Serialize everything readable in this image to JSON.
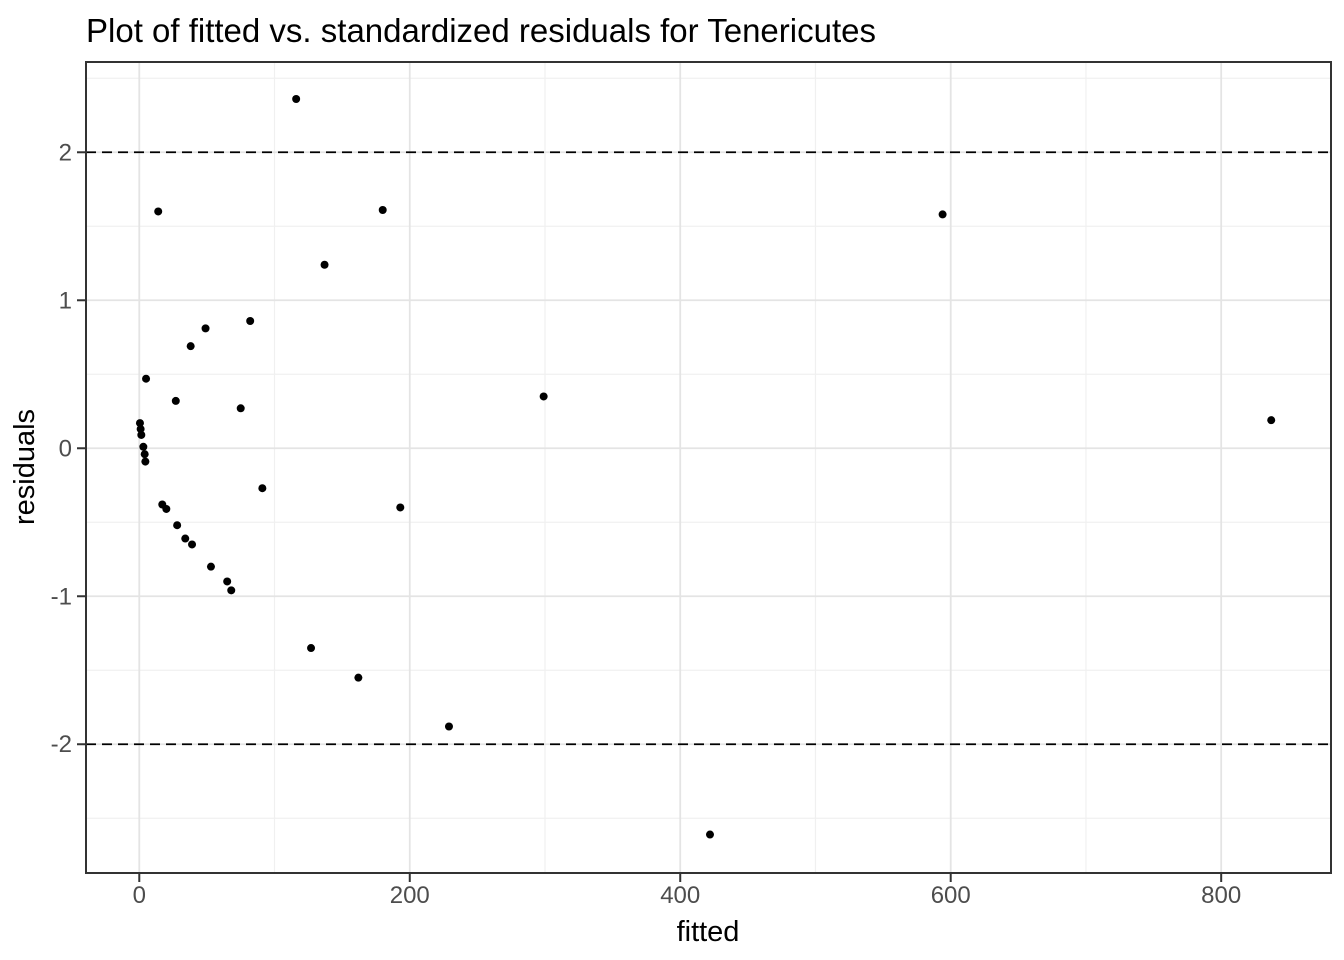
{
  "chart_data": {
    "type": "scatter",
    "title": "Plot of fitted vs. standardized residuals for Tenericutes",
    "xlabel": "fitted",
    "ylabel": "residuals",
    "x_ticks": [
      0,
      200,
      400,
      600,
      800
    ],
    "y_ticks": [
      -2,
      -1,
      0,
      1,
      2
    ],
    "x_minor_gridlines": [
      100,
      300,
      500,
      700
    ],
    "y_minor_gridlines": [
      -2.5,
      -1.5,
      -0.5,
      0.5,
      1.5,
      2.5
    ],
    "xlim": [
      -39.4,
      881.2
    ],
    "ylim": [
      -2.87,
      2.61
    ],
    "grid": "on",
    "legend": "none",
    "reference_lines": [
      {
        "y": 2,
        "style": "dashed",
        "color": "#000000"
      },
      {
        "y": -2,
        "style": "dashed",
        "color": "#000000"
      }
    ],
    "point_format": [
      "fitted",
      "residual"
    ],
    "points": [
      [
        116,
        2.36
      ],
      [
        14,
        1.6
      ],
      [
        180,
        1.61
      ],
      [
        594,
        1.58
      ],
      [
        137,
        1.24
      ],
      [
        82,
        0.86
      ],
      [
        49,
        0.81
      ],
      [
        38,
        0.69
      ],
      [
        5,
        0.47
      ],
      [
        299,
        0.35
      ],
      [
        27,
        0.32
      ],
      [
        75,
        0.27
      ],
      [
        837,
        0.19
      ],
      [
        0.5,
        0.17
      ],
      [
        1,
        0.13
      ],
      [
        1.5,
        0.09
      ],
      [
        3,
        0.01
      ],
      [
        4,
        -0.04
      ],
      [
        4.5,
        -0.09
      ],
      [
        91,
        -0.27
      ],
      [
        17,
        -0.38
      ],
      [
        20,
        -0.41
      ],
      [
        193,
        -0.4
      ],
      [
        28,
        -0.52
      ],
      [
        34,
        -0.61
      ],
      [
        39,
        -0.65
      ],
      [
        53,
        -0.8
      ],
      [
        65,
        -0.9
      ],
      [
        68,
        -0.96
      ],
      [
        127,
        -1.35
      ],
      [
        162,
        -1.55
      ],
      [
        229,
        -1.88
      ],
      [
        422,
        -2.61
      ]
    ]
  },
  "colors": {
    "background": "#ffffff",
    "panel_background": "#ffffff",
    "panel_border": "#333333",
    "grid_major": "#e4e4e4",
    "grid_minor": "#f0f0f0",
    "reference_line": "#000000",
    "point": "#000000",
    "tick_mark": "#333333",
    "tick_label": "#4d4d4d",
    "title": "#000000",
    "axis_title": "#000000"
  }
}
